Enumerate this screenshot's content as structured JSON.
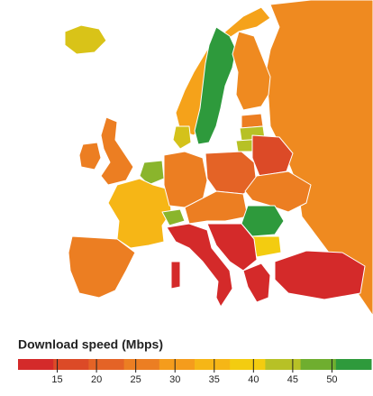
{
  "legend": {
    "title": "Download speed (Mbps)",
    "range": [
      10,
      55
    ],
    "ticks": [
      15,
      20,
      25,
      30,
      35,
      40,
      45,
      50
    ],
    "colors": [
      "#d42a2a",
      "#dc4a27",
      "#e46326",
      "#ec7e22",
      "#f59c1c",
      "#f6b616",
      "#f3cc10",
      "#b7c126",
      "#6fae2f",
      "#2e9a3c"
    ]
  }
}
